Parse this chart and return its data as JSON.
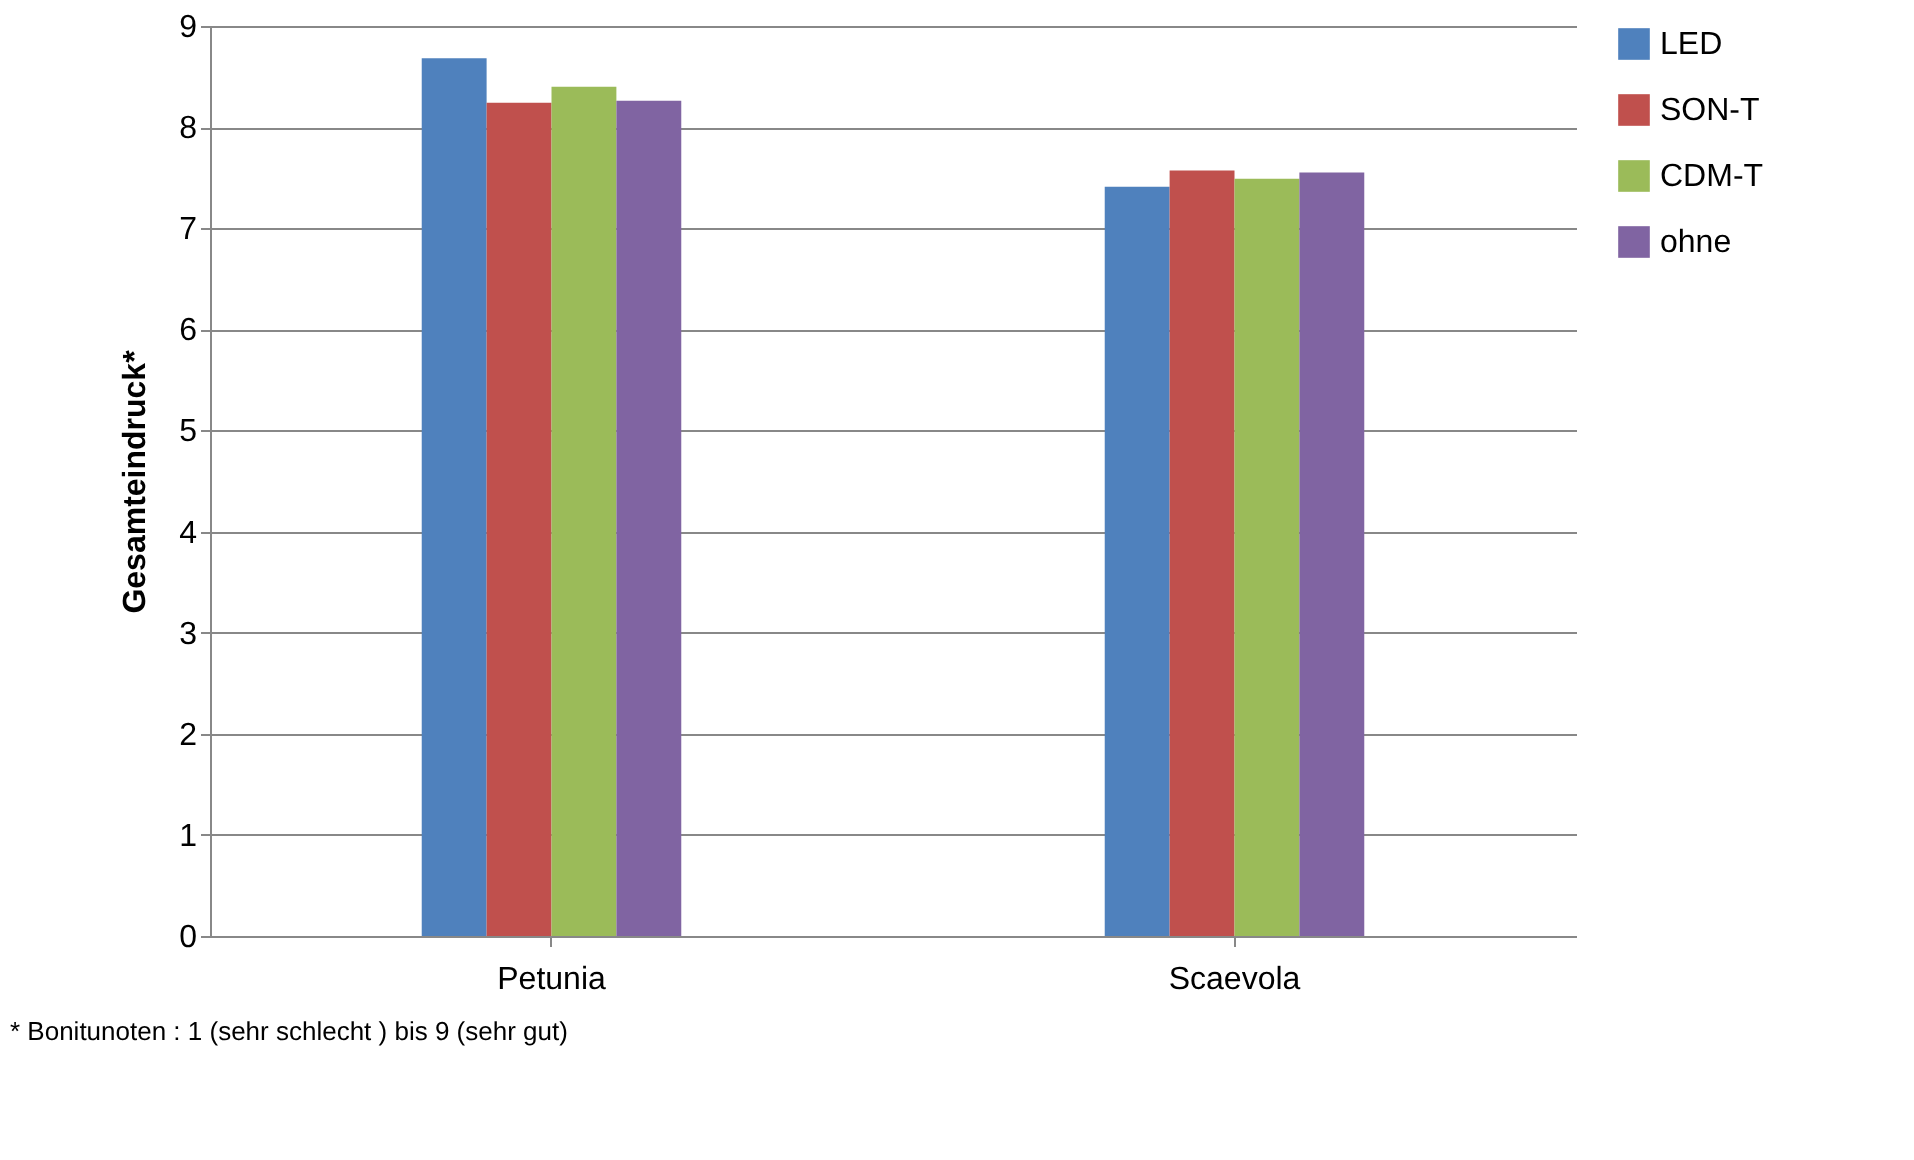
{
  "chart_data": {
    "type": "bar",
    "ylabel": "Gesamteindruck*",
    "categories": [
      "Petunia",
      "Scaevola"
    ],
    "series": [
      {
        "name": "LED",
        "color": "#4f81bd",
        "values": [
          8.68,
          7.41
        ]
      },
      {
        "name": "SON-T",
        "color": "#c0504d",
        "values": [
          8.24,
          7.57
        ]
      },
      {
        "name": "CDM-T",
        "color": "#9bbb59",
        "values": [
          8.4,
          7.49
        ]
      },
      {
        "name": "ohne",
        "color": "#8064a2",
        "values": [
          8.26,
          7.55
        ]
      }
    ],
    "ylim": [
      0,
      9
    ],
    "yticks": [
      0,
      1,
      2,
      3,
      4,
      5,
      6,
      7,
      8,
      9
    ],
    "grid": "y",
    "legend": "right",
    "annotations": [
      "* Bonitunoten : 1 (sehr schlecht ) bis 9 (sehr gut)"
    ]
  }
}
